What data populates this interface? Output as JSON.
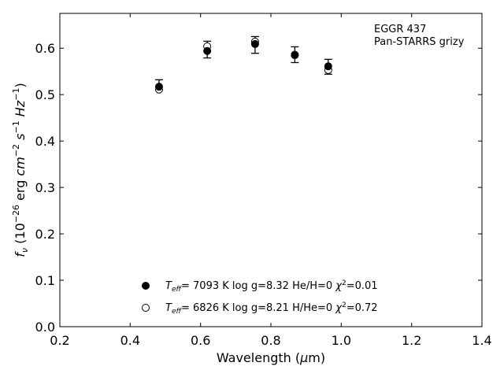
{
  "chart_data": {
    "type": "scatter",
    "xlabel": "Wavelength (μm)",
    "ylabel": "f_ν (10^−26 erg cm^−2 s^−1 Hz^−1)",
    "xlim": [
      0.2,
      1.4
    ],
    "ylim": [
      0.0,
      0.675
    ],
    "xticks": [
      0.2,
      0.4,
      0.6,
      0.8,
      1.0,
      1.2,
      1.4
    ],
    "yticks": [
      0.0,
      0.1,
      0.2,
      0.3,
      0.4,
      0.5,
      0.6
    ],
    "xtick_labels": [
      "0.2",
      "0.4",
      "0.6",
      "0.8",
      "1.0",
      "1.2",
      "1.4"
    ],
    "ytick_labels": [
      "0.0",
      "0.1",
      "0.2",
      "0.3",
      "0.4",
      "0.5",
      "0.6"
    ],
    "grid": false,
    "annotation": [
      "EGGR 437",
      "Pan-STARRS grizy"
    ],
    "observed": {
      "x": [
        0.482,
        0.619,
        0.755,
        0.868,
        0.963
      ],
      "y": [
        0.521,
        0.597,
        0.607,
        0.586,
        0.56
      ],
      "err": [
        0.011,
        0.018,
        0.018,
        0.017,
        0.016
      ]
    },
    "series": [
      {
        "marker": "filled-circle",
        "x": [
          0.482,
          0.619,
          0.755,
          0.868,
          0.963
        ],
        "y": [
          0.517,
          0.594,
          0.609,
          0.585,
          0.561
        ],
        "legend": [
          "=  7093 K  log g=8.32  He/H=0  ",
          "=0.01"
        ]
      },
      {
        "marker": "open-circle",
        "x": [
          0.482,
          0.619,
          0.755,
          0.868,
          0.963
        ],
        "y": [
          0.511,
          0.604,
          0.614,
          0.586,
          0.553
        ],
        "legend": [
          "=  6826 K  log g=8.21  H/He=0  ",
          "=0.72"
        ]
      }
    ],
    "legend_placement": "lower-center",
    "colors": {
      "marker": "#000000",
      "background": "#ffffff"
    }
  }
}
